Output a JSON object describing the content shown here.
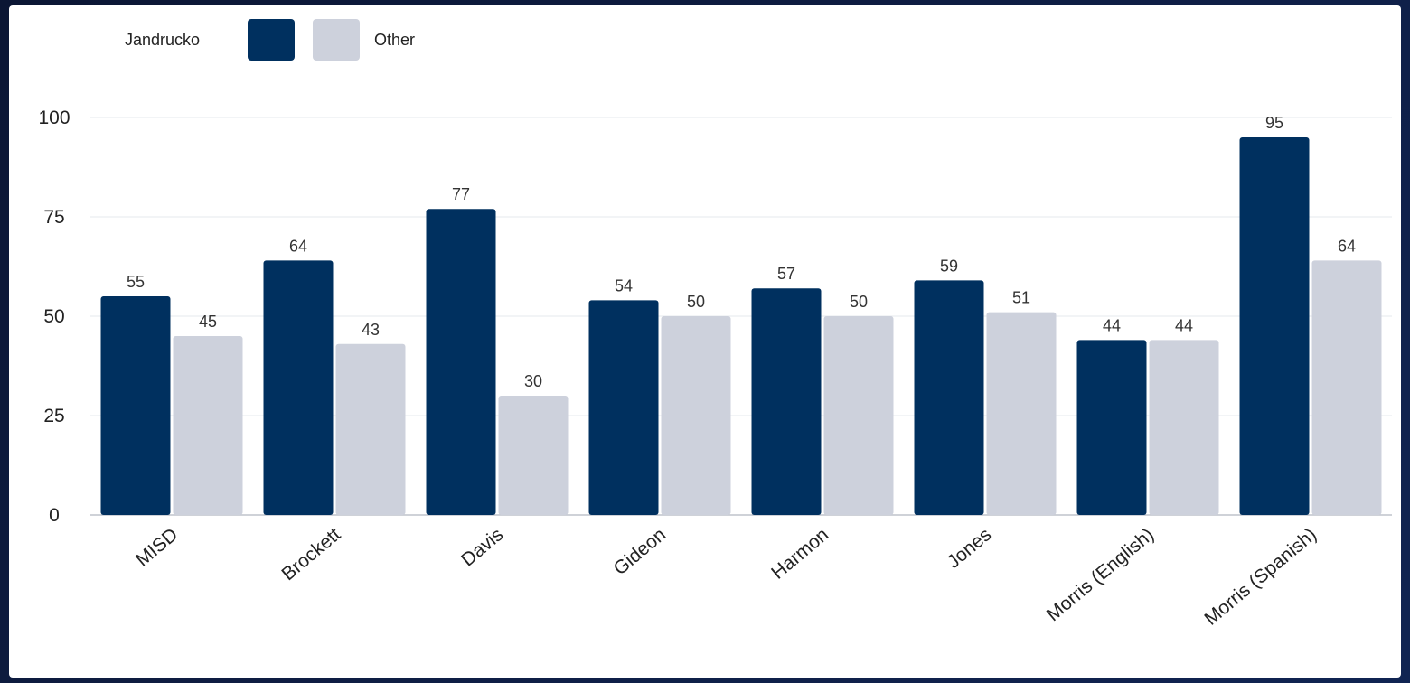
{
  "chart_data": {
    "type": "bar",
    "categories": [
      "MISD",
      "Brockett",
      "Davis",
      "Gideon",
      "Harmon",
      "Jones",
      "Morris (English)",
      "Morris (Spanish)"
    ],
    "series": [
      {
        "name": "Jandrucko",
        "color": "#00305f",
        "values": [
          55,
          64,
          77,
          54,
          57,
          59,
          44,
          95
        ]
      },
      {
        "name": "Other",
        "color": "#cdd1dc",
        "values": [
          45,
          43,
          30,
          50,
          50,
          51,
          44,
          64
        ]
      }
    ],
    "yticks": [
      0,
      25,
      50,
      75,
      100
    ],
    "ylim": [
      0,
      100
    ],
    "grid": true,
    "legend_position": "top-left",
    "data_labels": true
  }
}
